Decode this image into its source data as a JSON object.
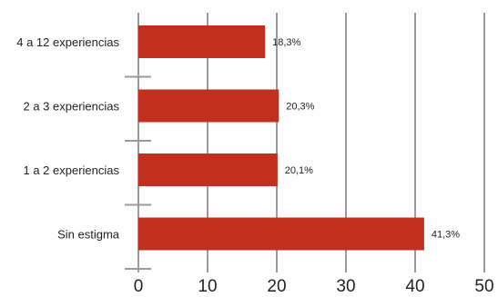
{
  "chart_data": {
    "type": "bar",
    "orientation": "horizontal",
    "categories": [
      "4 a 12 experiencias",
      "2 a 3 experiencias",
      "1 a 2 experiencias",
      "Sin estigma"
    ],
    "values": [
      18.3,
      20.3,
      20.1,
      41.3
    ],
    "value_labels": [
      "18,3%",
      "20,3%",
      "20,1%",
      "41,3%"
    ],
    "xlim": [
      0,
      50
    ],
    "x_ticks": [
      0,
      10,
      20,
      30,
      40,
      50
    ],
    "x_tick_labels": [
      "0",
      "10",
      "20",
      "30",
      "40",
      "50"
    ],
    "grid": "vertical",
    "legend": "none",
    "colors": {
      "bar": "#c0301c",
      "grid": "#9a9a9a",
      "text": "#222222"
    }
  }
}
